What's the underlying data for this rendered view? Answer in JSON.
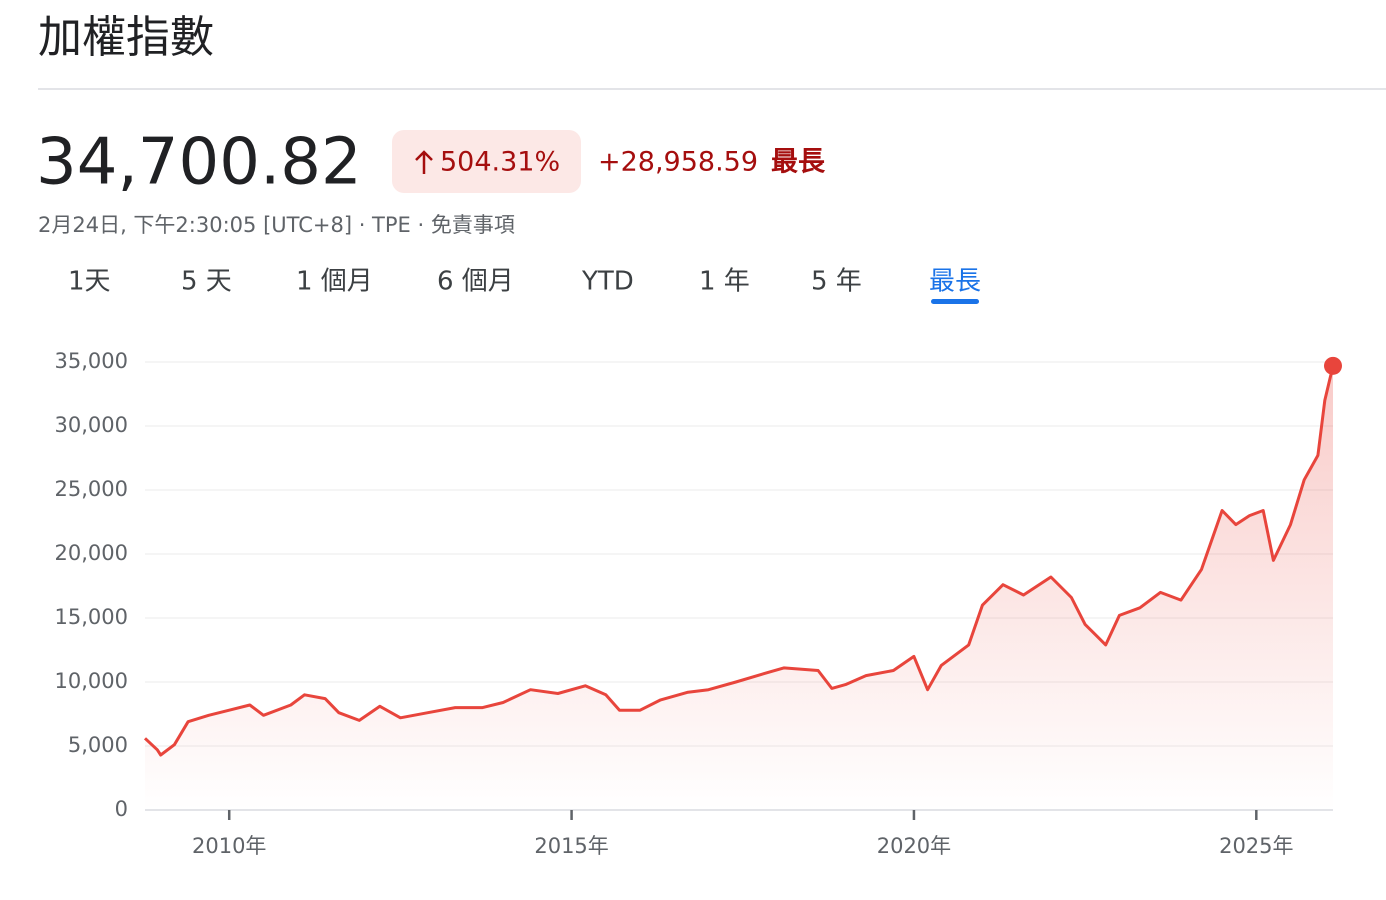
{
  "header": {
    "title": "加權指數",
    "price": "34,700.82",
    "change_percent": "504.31%",
    "change_value": "+28,958.59",
    "range_label": "最長",
    "timestamp": "2月24日, 下午2:30:05 [UTC+8] · TPE · 免責事項"
  },
  "tabs": [
    "1天",
    "5 天",
    "1 個月",
    "6 個月",
    "YTD",
    "1 年",
    "5 年",
    "最長"
  ],
  "active_tab": 7,
  "chart_data": {
    "type": "line",
    "x": [
      2008.77,
      2008.95,
      2009.0,
      2009.2,
      2009.4,
      2009.7,
      2010.0,
      2010.3,
      2010.5,
      2010.9,
      2011.1,
      2011.4,
      2011.6,
      2011.9,
      2012.2,
      2012.5,
      2012.9,
      2013.3,
      2013.7,
      2014.0,
      2014.4,
      2014.8,
      2015.2,
      2015.5,
      2015.7,
      2016.0,
      2016.3,
      2016.7,
      2017.0,
      2017.4,
      2017.9,
      2018.1,
      2018.6,
      2018.8,
      2019.0,
      2019.3,
      2019.7,
      2020.0,
      2020.2,
      2020.4,
      2020.8,
      2021.0,
      2021.3,
      2021.6,
      2022.0,
      2022.3,
      2022.5,
      2022.8,
      2023.0,
      2023.3,
      2023.6,
      2023.9,
      2024.2,
      2024.5,
      2024.7,
      2024.9,
      2025.1,
      2025.25,
      2025.5,
      2025.7,
      2025.9,
      2026.0,
      2026.12
    ],
    "series": [
      {
        "color": "#e8453c",
        "values": [
          5600,
          4700,
          4300,
          5100,
          6900,
          7400,
          7800,
          8200,
          7400,
          8200,
          9000,
          8700,
          7600,
          7000,
          8100,
          7200,
          7600,
          8000,
          8000,
          8400,
          9400,
          9100,
          9700,
          9000,
          7800,
          7800,
          8600,
          9200,
          9400,
          10000,
          10800,
          11100,
          10900,
          9500,
          9800,
          10500,
          10900,
          12000,
          9400,
          11300,
          12900,
          16000,
          17600,
          16800,
          18200,
          16600,
          14500,
          12900,
          15200,
          15800,
          17000,
          16400,
          18800,
          23400,
          22300,
          23000,
          23400,
          19500,
          22300,
          25800,
          27700,
          32000,
          34700.82
        ]
      }
    ],
    "xlim": [
      2008.77,
      2026.12
    ],
    "ylim": [
      0,
      35000
    ],
    "xticks": [
      {
        "value": 2010,
        "label": "2010年"
      },
      {
        "value": 2015,
        "label": "2015年"
      },
      {
        "value": 2020,
        "label": "2020年"
      },
      {
        "value": 2025,
        "label": "2025年"
      }
    ],
    "yticks": [
      0,
      {
        "value": 5000,
        "label": "5,000"
      },
      {
        "value": 10000,
        "label": "10,000"
      },
      {
        "value": 15000,
        "label": "15,000"
      },
      {
        "value": 20000,
        "label": "20,000"
      },
      {
        "value": 25000,
        "label": "25,000"
      },
      {
        "value": 30000,
        "label": "30,000"
      },
      {
        "value": 35000,
        "label": "35,000"
      }
    ],
    "grid": true
  }
}
